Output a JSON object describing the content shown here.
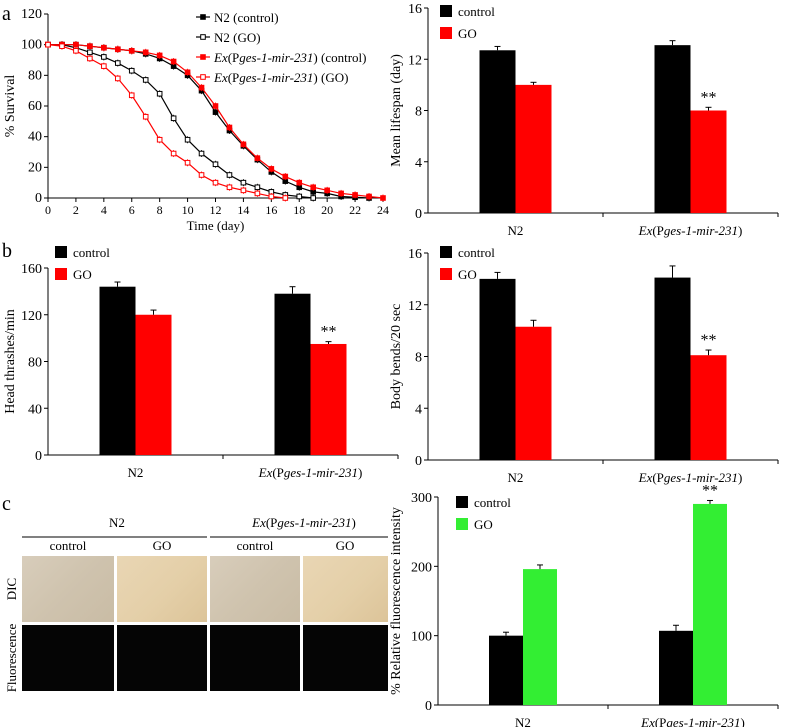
{
  "panel_labels": {
    "a": "a",
    "b": "b",
    "c": "c"
  },
  "colors": {
    "black": "#000000",
    "red": "#ff0000",
    "green": "#33ee33",
    "gray": "#555555"
  },
  "chart_data": [
    {
      "id": "survival",
      "type": "line",
      "xlabel": "Time (day)",
      "ylabel": "% Survival",
      "xlim": [
        0,
        24
      ],
      "ylim": [
        0,
        120
      ],
      "xticks": [
        "0",
        "2",
        "4",
        "6",
        "8",
        "10",
        "12",
        "14",
        "16",
        "18",
        "20",
        "22",
        "24"
      ],
      "yticks": [
        "0",
        "20",
        "40",
        "60",
        "80",
        "100",
        "120"
      ],
      "series": [
        {
          "name": "N2 (control)",
          "color": "#000000",
          "marker": "filled",
          "x": [
            0,
            1,
            2,
            3,
            4,
            5,
            6,
            7,
            8,
            9,
            10,
            11,
            12,
            13,
            14,
            15,
            16,
            17,
            18,
            19,
            20,
            21,
            22,
            23
          ],
          "y": [
            100,
            100,
            100,
            99,
            98,
            97,
            96,
            94,
            91,
            86,
            80,
            70,
            56,
            44,
            34,
            25,
            17,
            11,
            7,
            4,
            3,
            1,
            0.5,
            0
          ]
        },
        {
          "name": "N2 (GO)",
          "color": "#000000",
          "marker": "open",
          "x": [
            0,
            1,
            2,
            3,
            4,
            5,
            6,
            7,
            8,
            9,
            10,
            11,
            12,
            13,
            14,
            15,
            16,
            17,
            18,
            19
          ],
          "y": [
            100,
            100,
            98,
            95,
            92,
            88,
            83,
            77,
            68,
            52,
            38,
            29,
            22,
            15,
            10,
            7,
            4,
            2,
            1,
            0
          ]
        },
        {
          "name": "Ex(Pges-1-mir-231) (control)",
          "color": "#ff0000",
          "marker": "filled",
          "x": [
            0,
            1,
            2,
            3,
            4,
            5,
            6,
            7,
            8,
            9,
            10,
            11,
            12,
            13,
            14,
            15,
            16,
            17,
            18,
            19,
            20,
            21,
            22,
            23,
            24
          ],
          "y": [
            100,
            100,
            100,
            99,
            98,
            97,
            96,
            95,
            93,
            89,
            82,
            72,
            60,
            46,
            35,
            26,
            19,
            14,
            10,
            7,
            5,
            3,
            2,
            1,
            0
          ]
        },
        {
          "name": "Ex(Pges-1-mir-231) (GO)",
          "color": "#ff0000",
          "marker": "open",
          "x": [
            0,
            1,
            2,
            3,
            4,
            5,
            6,
            7,
            8,
            9,
            10,
            11,
            12,
            13,
            14,
            15,
            16,
            17
          ],
          "y": [
            100,
            99,
            96,
            91,
            86,
            78,
            67,
            53,
            38,
            29,
            23,
            15,
            10,
            7,
            5,
            3,
            1,
            0
          ]
        }
      ]
    },
    {
      "id": "mean_lifespan",
      "type": "bar",
      "ylabel": "Mean lifespan (day)",
      "ylim": [
        0,
        16
      ],
      "yticks": [
        "0",
        "4",
        "8",
        "12",
        "16"
      ],
      "categories": [
        "N2",
        "Ex(Pges-1-mir-231)"
      ],
      "series": [
        {
          "name": "control",
          "color": "#000000",
          "values": [
            12.7,
            13.1
          ],
          "errors": [
            0.3,
            0.35
          ]
        },
        {
          "name": "GO",
          "color": "#ff0000",
          "values": [
            10.0,
            8.0
          ],
          "errors": [
            0.2,
            0.25
          ]
        }
      ],
      "annotations": [
        {
          "category": 1,
          "series": 1,
          "text": "**"
        }
      ]
    },
    {
      "id": "head_thrashes",
      "type": "bar",
      "ylabel": "Head thrashes/min",
      "ylim": [
        0,
        160
      ],
      "yticks": [
        "0",
        "40",
        "80",
        "120",
        "160"
      ],
      "categories": [
        "N2",
        "Ex(Pges-1-mir-231)"
      ],
      "series": [
        {
          "name": "control",
          "color": "#000000",
          "values": [
            144,
            138
          ],
          "errors": [
            4,
            6
          ]
        },
        {
          "name": "GO",
          "color": "#ff0000",
          "values": [
            120,
            95
          ],
          "errors": [
            4,
            2
          ]
        }
      ],
      "annotations": [
        {
          "category": 1,
          "series": 1,
          "text": "**"
        }
      ]
    },
    {
      "id": "body_bends",
      "type": "bar",
      "ylabel": "Body bends/20 sec",
      "ylim": [
        0,
        16
      ],
      "yticks": [
        "0",
        "4",
        "8",
        "12",
        "16"
      ],
      "categories": [
        "N2",
        "Ex(Pges-1-mir-231)"
      ],
      "series": [
        {
          "name": "control",
          "color": "#000000",
          "values": [
            14.0,
            14.1
          ],
          "errors": [
            0.5,
            0.9
          ]
        },
        {
          "name": "GO",
          "color": "#ff0000",
          "values": [
            10.3,
            8.1
          ],
          "errors": [
            0.5,
            0.4
          ]
        }
      ],
      "annotations": [
        {
          "category": 1,
          "series": 1,
          "text": "**"
        }
      ]
    },
    {
      "id": "fluorescence",
      "type": "bar",
      "ylabel": "% Relative fluorescence intensity",
      "ylim": [
        0,
        300
      ],
      "yticks": [
        "0",
        "100",
        "200",
        "300"
      ],
      "categories": [
        "N2",
        "Ex(Pges-1-mir-231)"
      ],
      "series": [
        {
          "name": "control",
          "color": "#000000",
          "values": [
            100,
            107
          ],
          "errors": [
            5,
            8
          ]
        },
        {
          "name": "GO",
          "color": "#33ee33",
          "values": [
            196,
            290
          ],
          "errors": [
            6,
            5
          ]
        }
      ],
      "annotations": [
        {
          "category": 1,
          "series": 1,
          "text": "**"
        }
      ]
    }
  ],
  "micrographs": {
    "group_labels": [
      "N2",
      "Ex(Pges-1-mir-231)"
    ],
    "column_labels": [
      "control",
      "GO",
      "control",
      "GO"
    ],
    "row_labels": [
      "DIC",
      "Fluorescence"
    ]
  }
}
